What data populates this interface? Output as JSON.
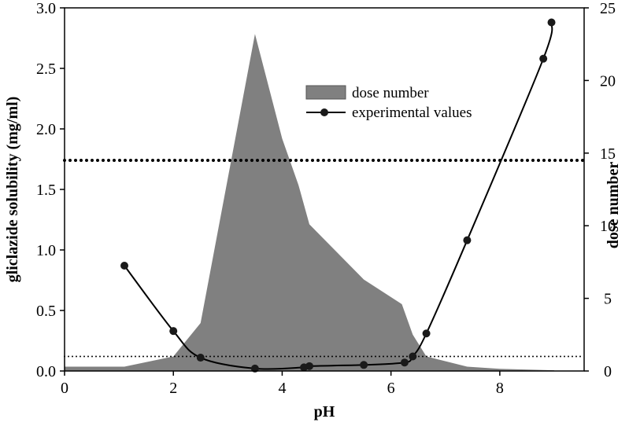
{
  "chart_data": {
    "type": "area+line",
    "xlabel": "pH",
    "ylabel_left": "gliclazide solubility (mg/ml)",
    "ylabel_right": "dose number",
    "xlim": [
      0,
      9.55
    ],
    "ylim_left": [
      0,
      3.0
    ],
    "ylim_right": [
      0,
      25
    ],
    "x_ticks": [
      "0",
      "2",
      "4",
      "6",
      "8"
    ],
    "y_left_ticks": [
      "0.0",
      "0.5",
      "1.0",
      "1.5",
      "2.0",
      "2.5",
      "3.0"
    ],
    "y_right_ticks": [
      "0",
      "5",
      "10",
      "15",
      "20",
      "25"
    ],
    "legend": [
      "dose number",
      "experimental values"
    ],
    "legend_position": "top-center",
    "series": [
      {
        "name": "dose number",
        "kind": "area",
        "axis": "right",
        "color": "#808080",
        "x": [
          0,
          1.1,
          2.0,
          2.5,
          3.5,
          4.0,
          4.3,
          4.5,
          5.5,
          6.2,
          6.4,
          6.65,
          7.4,
          8.0,
          9.0
        ],
        "y": [
          0.3,
          0.3,
          1.0,
          3.3,
          23.2,
          16.0,
          12.8,
          10.1,
          6.3,
          4.6,
          2.5,
          1.0,
          0.3,
          0.15,
          0.05
        ]
      },
      {
        "name": "experimental values",
        "kind": "line-markers",
        "axis": "left",
        "color": "#000000",
        "x": [
          1.1,
          2.0,
          2.5,
          3.5,
          4.4,
          4.5,
          5.5,
          6.25,
          6.4,
          6.65,
          7.4,
          8.8,
          8.95
        ],
        "y": [
          0.87,
          0.33,
          0.11,
          0.02,
          0.03,
          0.04,
          0.05,
          0.07,
          0.12,
          0.31,
          1.08,
          2.58,
          2.88
        ]
      }
    ],
    "reference_lines": [
      {
        "axis": "right",
        "y": 14.5,
        "style": "dotted-thick"
      },
      {
        "axis": "right",
        "y": 1.0,
        "style": "dotted-thin"
      }
    ]
  }
}
